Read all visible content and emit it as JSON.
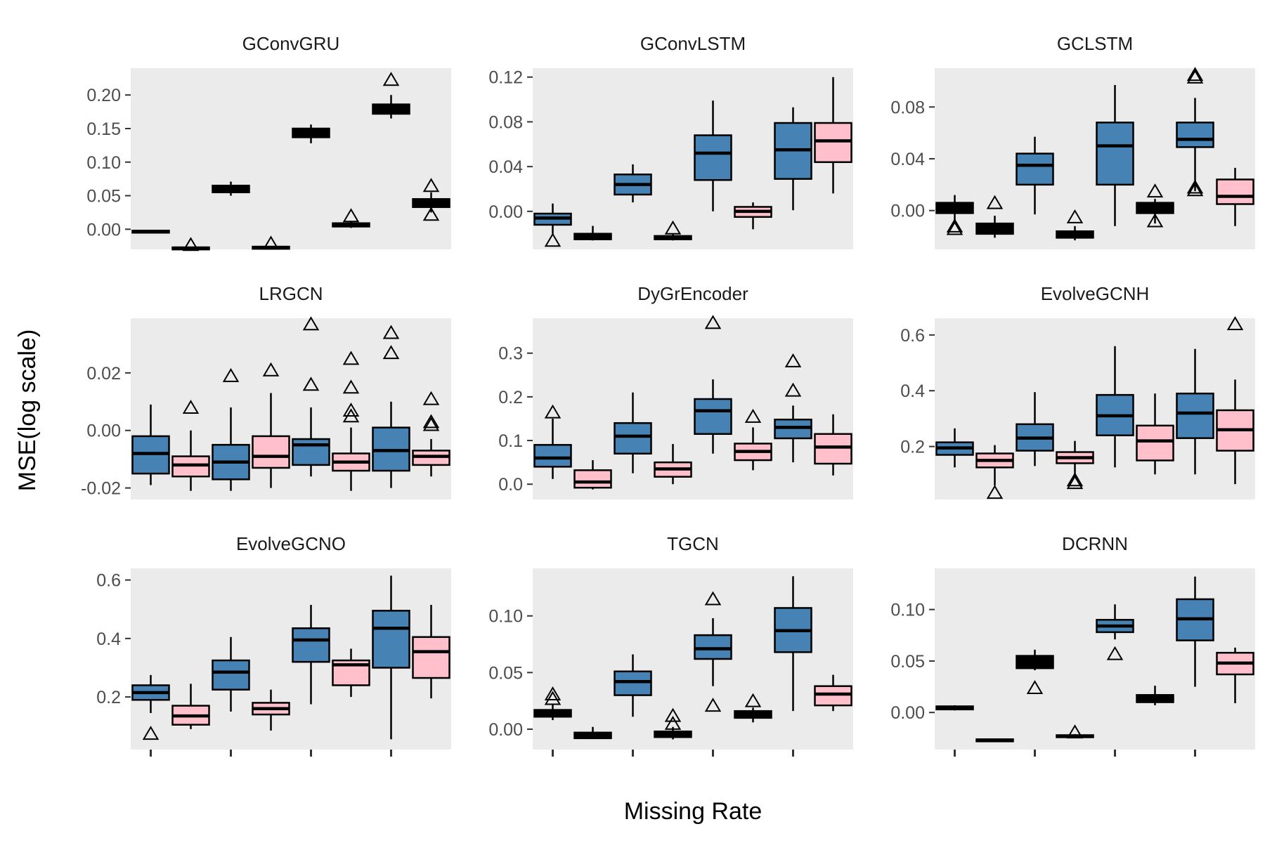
{
  "figure": {
    "ylabel": "MSE(log scale)",
    "xlabel": "Missing Rate",
    "panel_background": "#EBEBEB",
    "box_colors": {
      "blue": "#4682B4",
      "pink": "#FFC0CB",
      "black": "#000000"
    },
    "outlier_shape": "open triangle"
  },
  "chart_data": [
    {
      "type": "box",
      "title": "GConvGRU",
      "ylim": [
        -0.03,
        0.24
      ],
      "yticks": [
        0.0,
        0.05,
        0.1,
        0.15,
        0.2
      ],
      "ytick_labels": [
        "0.00",
        "0.05",
        "0.10",
        "0.15",
        "0.20"
      ],
      "boxes": [
        {
          "fill": "black",
          "min": -0.004,
          "q1": -0.004,
          "median": -0.003,
          "q3": -0.002,
          "max": -0.002,
          "outliers": []
        },
        {
          "fill": "black",
          "min": -0.029,
          "q1": -0.029,
          "median": -0.028,
          "q3": -0.027,
          "max": -0.026,
          "outliers": [
            -0.023
          ]
        },
        {
          "fill": "black",
          "min": 0.05,
          "q1": 0.055,
          "median": 0.06,
          "q3": 0.065,
          "max": 0.071,
          "outliers": []
        },
        {
          "fill": "black",
          "min": -0.028,
          "q1": -0.028,
          "median": -0.027,
          "q3": -0.026,
          "max": -0.025,
          "outliers": [
            -0.021
          ]
        },
        {
          "fill": "black",
          "min": 0.128,
          "q1": 0.137,
          "median": 0.143,
          "q3": 0.15,
          "max": 0.156,
          "outliers": []
        },
        {
          "fill": "black",
          "min": 0.002,
          "q1": 0.004,
          "median": 0.006,
          "q3": 0.009,
          "max": 0.011,
          "outliers": [
            0.02
          ]
        },
        {
          "fill": "black",
          "min": 0.165,
          "q1": 0.172,
          "median": 0.178,
          "q3": 0.186,
          "max": 0.2,
          "outliers": [
            0.223
          ]
        },
        {
          "fill": "black",
          "min": 0.025,
          "q1": 0.033,
          "median": 0.039,
          "q3": 0.045,
          "max": 0.055,
          "outliers": [
            0.065,
            0.022
          ]
        }
      ]
    },
    {
      "type": "box",
      "title": "GConvLSTM",
      "ylim": [
        -0.034,
        0.128
      ],
      "yticks": [
        0.0,
        0.04,
        0.08,
        0.12
      ],
      "ytick_labels": [
        "0.00",
        "0.04",
        "0.08",
        "0.12"
      ],
      "boxes": [
        {
          "fill": "blue",
          "min": -0.02,
          "q1": -0.012,
          "median": -0.006,
          "q3": -0.002,
          "max": 0.007,
          "outliers": [
            -0.026
          ]
        },
        {
          "fill": "black",
          "min": -0.026,
          "q1": -0.025,
          "median": -0.022,
          "q3": -0.02,
          "max": -0.013,
          "outliers": []
        },
        {
          "fill": "blue",
          "min": 0.008,
          "q1": 0.015,
          "median": 0.024,
          "q3": 0.033,
          "max": 0.042,
          "outliers": []
        },
        {
          "fill": "black",
          "min": -0.026,
          "q1": -0.025,
          "median": -0.024,
          "q3": -0.022,
          "max": -0.02,
          "outliers": [
            -0.015
          ]
        },
        {
          "fill": "blue",
          "min": 0.0,
          "q1": 0.028,
          "median": 0.052,
          "q3": 0.068,
          "max": 0.099,
          "outliers": []
        },
        {
          "fill": "pink",
          "min": -0.016,
          "q1": -0.005,
          "median": 0.0,
          "q3": 0.004,
          "max": 0.008,
          "outliers": []
        },
        {
          "fill": "blue",
          "min": 0.001,
          "q1": 0.029,
          "median": 0.055,
          "q3": 0.079,
          "max": 0.093,
          "outliers": []
        },
        {
          "fill": "pink",
          "min": 0.016,
          "q1": 0.044,
          "median": 0.063,
          "q3": 0.079,
          "max": 0.12,
          "outliers": []
        }
      ]
    },
    {
      "type": "box",
      "title": "GCLSTM",
      "ylim": [
        -0.03,
        0.11
      ],
      "yticks": [
        0.0,
        0.04,
        0.08
      ],
      "ytick_labels": [
        "0.00",
        "0.04",
        "0.08"
      ],
      "boxes": [
        {
          "fill": "black",
          "min": -0.01,
          "q1": -0.002,
          "median": 0.002,
          "q3": 0.006,
          "max": 0.012,
          "outliers": [
            -0.014,
            -0.012
          ]
        },
        {
          "fill": "black",
          "min": -0.021,
          "q1": -0.018,
          "median": -0.013,
          "q3": -0.01,
          "max": -0.004,
          "outliers": [
            0.006
          ]
        },
        {
          "fill": "blue",
          "min": -0.003,
          "q1": 0.02,
          "median": 0.035,
          "q3": 0.044,
          "max": 0.057,
          "outliers": []
        },
        {
          "fill": "black",
          "min": -0.023,
          "q1": -0.021,
          "median": -0.019,
          "q3": -0.016,
          "max": -0.012,
          "outliers": [
            -0.005
          ]
        },
        {
          "fill": "blue",
          "min": -0.012,
          "q1": 0.02,
          "median": 0.05,
          "q3": 0.068,
          "max": 0.097,
          "outliers": []
        },
        {
          "fill": "black",
          "min": -0.01,
          "q1": -0.002,
          "median": 0.002,
          "q3": 0.006,
          "max": 0.009,
          "outliers": [
            0.015,
            -0.008
          ]
        },
        {
          "fill": "blue",
          "min": 0.015,
          "q1": 0.049,
          "median": 0.055,
          "q3": 0.068,
          "max": 0.087,
          "outliers": [
            0.103,
            0.105,
            0.018,
            0.016
          ]
        },
        {
          "fill": "pink",
          "min": -0.012,
          "q1": 0.005,
          "median": 0.011,
          "q3": 0.024,
          "max": 0.033,
          "outliers": []
        }
      ]
    },
    {
      "type": "box",
      "title": "LRGCN",
      "ylim": [
        -0.024,
        0.039
      ],
      "yticks": [
        -0.02,
        0.0,
        0.02
      ],
      "ytick_labels": [
        "-0.02",
        "0.00",
        "0.02"
      ],
      "boxes": [
        {
          "fill": "blue",
          "min": -0.019,
          "q1": -0.015,
          "median": -0.008,
          "q3": -0.002,
          "max": 0.009,
          "outliers": []
        },
        {
          "fill": "pink",
          "min": -0.021,
          "q1": -0.016,
          "median": -0.012,
          "q3": -0.009,
          "max": 0.0,
          "outliers": [
            0.008
          ]
        },
        {
          "fill": "blue",
          "min": -0.021,
          "q1": -0.017,
          "median": -0.011,
          "q3": -0.005,
          "max": 0.008,
          "outliers": [
            0.019
          ]
        },
        {
          "fill": "pink",
          "min": -0.02,
          "q1": -0.013,
          "median": -0.009,
          "q3": -0.002,
          "max": 0.013,
          "outliers": [
            0.021
          ]
        },
        {
          "fill": "blue",
          "min": -0.016,
          "q1": -0.012,
          "median": -0.005,
          "q3": -0.003,
          "max": 0.008,
          "outliers": [
            0.037,
            0.016
          ]
        },
        {
          "fill": "pink",
          "min": -0.021,
          "q1": -0.014,
          "median": -0.011,
          "q3": -0.008,
          "max": 0.001,
          "outliers": [
            0.025,
            0.015,
            0.007,
            0.005
          ]
        },
        {
          "fill": "blue",
          "min": -0.02,
          "q1": -0.014,
          "median": -0.007,
          "q3": 0.001,
          "max": 0.01,
          "outliers": [
            0.034,
            0.027
          ]
        },
        {
          "fill": "pink",
          "min": -0.016,
          "q1": -0.012,
          "median": -0.009,
          "q3": -0.007,
          "max": -0.003,
          "outliers": [
            0.011,
            0.003,
            0.002
          ]
        }
      ]
    },
    {
      "type": "box",
      "title": "DyGrEncoder",
      "ylim": [
        -0.035,
        0.38
      ],
      "yticks": [
        0.0,
        0.1,
        0.2,
        0.3
      ],
      "ytick_labels": [
        "0.0",
        "0.1",
        "0.2",
        "0.3"
      ],
      "boxes": [
        {
          "fill": "blue",
          "min": 0.012,
          "q1": 0.04,
          "median": 0.06,
          "q3": 0.09,
          "max": 0.15,
          "outliers": [
            0.165
          ]
        },
        {
          "fill": "pink",
          "min": -0.012,
          "q1": -0.008,
          "median": 0.005,
          "q3": 0.032,
          "max": 0.055,
          "outliers": []
        },
        {
          "fill": "blue",
          "min": 0.025,
          "q1": 0.07,
          "median": 0.11,
          "q3": 0.14,
          "max": 0.21,
          "outliers": []
        },
        {
          "fill": "pink",
          "min": 0.0,
          "q1": 0.017,
          "median": 0.035,
          "q3": 0.05,
          "max": 0.092,
          "outliers": []
        },
        {
          "fill": "blue",
          "min": 0.07,
          "q1": 0.115,
          "median": 0.168,
          "q3": 0.195,
          "max": 0.24,
          "outliers": [
            0.37
          ]
        },
        {
          "fill": "pink",
          "min": 0.032,
          "q1": 0.055,
          "median": 0.075,
          "q3": 0.093,
          "max": 0.13,
          "outliers": [
            0.155
          ]
        },
        {
          "fill": "blue",
          "min": 0.05,
          "q1": 0.105,
          "median": 0.13,
          "q3": 0.148,
          "max": 0.18,
          "outliers": [
            0.282,
            0.215
          ]
        },
        {
          "fill": "pink",
          "min": 0.02,
          "q1": 0.047,
          "median": 0.085,
          "q3": 0.115,
          "max": 0.16,
          "outliers": []
        }
      ]
    },
    {
      "type": "box",
      "title": "EvolveGCNH",
      "ylim": [
        0.01,
        0.66
      ],
      "yticks": [
        0.2,
        0.4,
        0.6
      ],
      "ytick_labels": [
        "0.2",
        "0.4",
        "0.6"
      ],
      "boxes": [
        {
          "fill": "blue",
          "min": 0.125,
          "q1": 0.17,
          "median": 0.195,
          "q3": 0.215,
          "max": 0.265,
          "outliers": []
        },
        {
          "fill": "pink",
          "min": 0.06,
          "q1": 0.125,
          "median": 0.15,
          "q3": 0.175,
          "max": 0.205,
          "outliers": [
            0.035
          ]
        },
        {
          "fill": "blue",
          "min": 0.13,
          "q1": 0.185,
          "median": 0.23,
          "q3": 0.28,
          "max": 0.395,
          "outliers": []
        },
        {
          "fill": "pink",
          "min": 0.09,
          "q1": 0.14,
          "median": 0.16,
          "q3": 0.18,
          "max": 0.22,
          "outliers": [
            0.08,
            0.07
          ]
        },
        {
          "fill": "blue",
          "min": 0.125,
          "q1": 0.24,
          "median": 0.31,
          "q3": 0.385,
          "max": 0.56,
          "outliers": []
        },
        {
          "fill": "pink",
          "min": 0.1,
          "q1": 0.15,
          "median": 0.22,
          "q3": 0.275,
          "max": 0.39,
          "outliers": []
        },
        {
          "fill": "blue",
          "min": 0.1,
          "q1": 0.23,
          "median": 0.32,
          "q3": 0.39,
          "max": 0.55,
          "outliers": []
        },
        {
          "fill": "pink",
          "min": 0.065,
          "q1": 0.185,
          "median": 0.26,
          "q3": 0.33,
          "max": 0.44,
          "outliers": [
            0.64
          ]
        }
      ]
    },
    {
      "type": "box",
      "title": "EvolveGCNO",
      "ylim": [
        0.02,
        0.64
      ],
      "yticks": [
        0.2,
        0.4,
        0.6
      ],
      "ytick_labels": [
        "0.2",
        "0.4",
        "0.6"
      ],
      "boxes": [
        {
          "fill": "blue",
          "min": 0.145,
          "q1": 0.19,
          "median": 0.215,
          "q3": 0.24,
          "max": 0.275,
          "outliers": [
            0.075
          ]
        },
        {
          "fill": "pink",
          "min": 0.09,
          "q1": 0.105,
          "median": 0.135,
          "q3": 0.17,
          "max": 0.245,
          "outliers": []
        },
        {
          "fill": "blue",
          "min": 0.15,
          "q1": 0.225,
          "median": 0.285,
          "q3": 0.325,
          "max": 0.405,
          "outliers": []
        },
        {
          "fill": "pink",
          "min": 0.085,
          "q1": 0.14,
          "median": 0.16,
          "q3": 0.18,
          "max": 0.225,
          "outliers": []
        },
        {
          "fill": "blue",
          "min": 0.175,
          "q1": 0.32,
          "median": 0.395,
          "q3": 0.435,
          "max": 0.515,
          "outliers": []
        },
        {
          "fill": "pink",
          "min": 0.2,
          "q1": 0.24,
          "median": 0.31,
          "q3": 0.325,
          "max": 0.365,
          "outliers": []
        },
        {
          "fill": "blue",
          "min": 0.055,
          "q1": 0.3,
          "median": 0.435,
          "q3": 0.495,
          "max": 0.615,
          "outliers": []
        },
        {
          "fill": "pink",
          "min": 0.195,
          "q1": 0.265,
          "median": 0.355,
          "q3": 0.405,
          "max": 0.515,
          "outliers": []
        }
      ]
    },
    {
      "type": "box",
      "title": "TGCN",
      "ylim": [
        -0.018,
        0.142
      ],
      "yticks": [
        0.0,
        0.05,
        0.1
      ],
      "ytick_labels": [
        "0.00",
        "0.05",
        "0.10"
      ],
      "boxes": [
        {
          "fill": "black",
          "min": 0.008,
          "q1": 0.011,
          "median": 0.014,
          "q3": 0.017,
          "max": 0.022,
          "outliers": [
            0.031,
            0.027
          ]
        },
        {
          "fill": "black",
          "min": -0.008,
          "q1": -0.008,
          "median": -0.005,
          "q3": -0.003,
          "max": 0.002,
          "outliers": []
        },
        {
          "fill": "blue",
          "min": 0.011,
          "q1": 0.03,
          "median": 0.042,
          "q3": 0.051,
          "max": 0.066,
          "outliers": []
        },
        {
          "fill": "black",
          "min": -0.009,
          "q1": -0.007,
          "median": -0.005,
          "q3": -0.002,
          "max": 0.002,
          "outliers": [
            0.012,
            0.005
          ]
        },
        {
          "fill": "blue",
          "min": 0.038,
          "q1": 0.062,
          "median": 0.071,
          "q3": 0.083,
          "max": 0.098,
          "outliers": [
            0.115,
            0.021
          ]
        },
        {
          "fill": "black",
          "min": 0.006,
          "q1": 0.01,
          "median": 0.013,
          "q3": 0.016,
          "max": 0.019,
          "outliers": [
            0.025
          ]
        },
        {
          "fill": "blue",
          "min": 0.016,
          "q1": 0.068,
          "median": 0.087,
          "q3": 0.107,
          "max": 0.135,
          "outliers": []
        },
        {
          "fill": "pink",
          "min": 0.016,
          "q1": 0.021,
          "median": 0.031,
          "q3": 0.038,
          "max": 0.048,
          "outliers": []
        }
      ]
    },
    {
      "type": "box",
      "title": "DCRNN",
      "ylim": [
        -0.036,
        0.14
      ],
      "yticks": [
        0.0,
        0.05,
        0.1
      ],
      "ytick_labels": [
        "0.00",
        "0.05",
        "0.10"
      ],
      "boxes": [
        {
          "fill": "black",
          "min": 0.002,
          "q1": 0.003,
          "median": 0.004,
          "q3": 0.006,
          "max": 0.007,
          "outliers": []
        },
        {
          "fill": "black",
          "min": -0.028,
          "q1": -0.027,
          "median": -0.027,
          "q3": -0.026,
          "max": -0.026,
          "outliers": []
        },
        {
          "fill": "black",
          "min": 0.041,
          "q1": 0.043,
          "median": 0.048,
          "q3": 0.055,
          "max": 0.061,
          "outliers": [
            0.024
          ]
        },
        {
          "fill": "black",
          "min": -0.024,
          "q1": -0.024,
          "median": -0.023,
          "q3": -0.022,
          "max": -0.021,
          "outliers": [
            -0.019
          ]
        },
        {
          "fill": "blue",
          "min": 0.071,
          "q1": 0.078,
          "median": 0.084,
          "q3": 0.09,
          "max": 0.105,
          "outliers": [
            0.057
          ]
        },
        {
          "fill": "black",
          "min": 0.007,
          "q1": 0.01,
          "median": 0.013,
          "q3": 0.017,
          "max": 0.026,
          "outliers": []
        },
        {
          "fill": "blue",
          "min": 0.025,
          "q1": 0.07,
          "median": 0.091,
          "q3": 0.11,
          "max": 0.132,
          "outliers": []
        },
        {
          "fill": "pink",
          "min": 0.009,
          "q1": 0.037,
          "median": 0.048,
          "q3": 0.058,
          "max": 0.063,
          "outliers": []
        }
      ]
    }
  ]
}
